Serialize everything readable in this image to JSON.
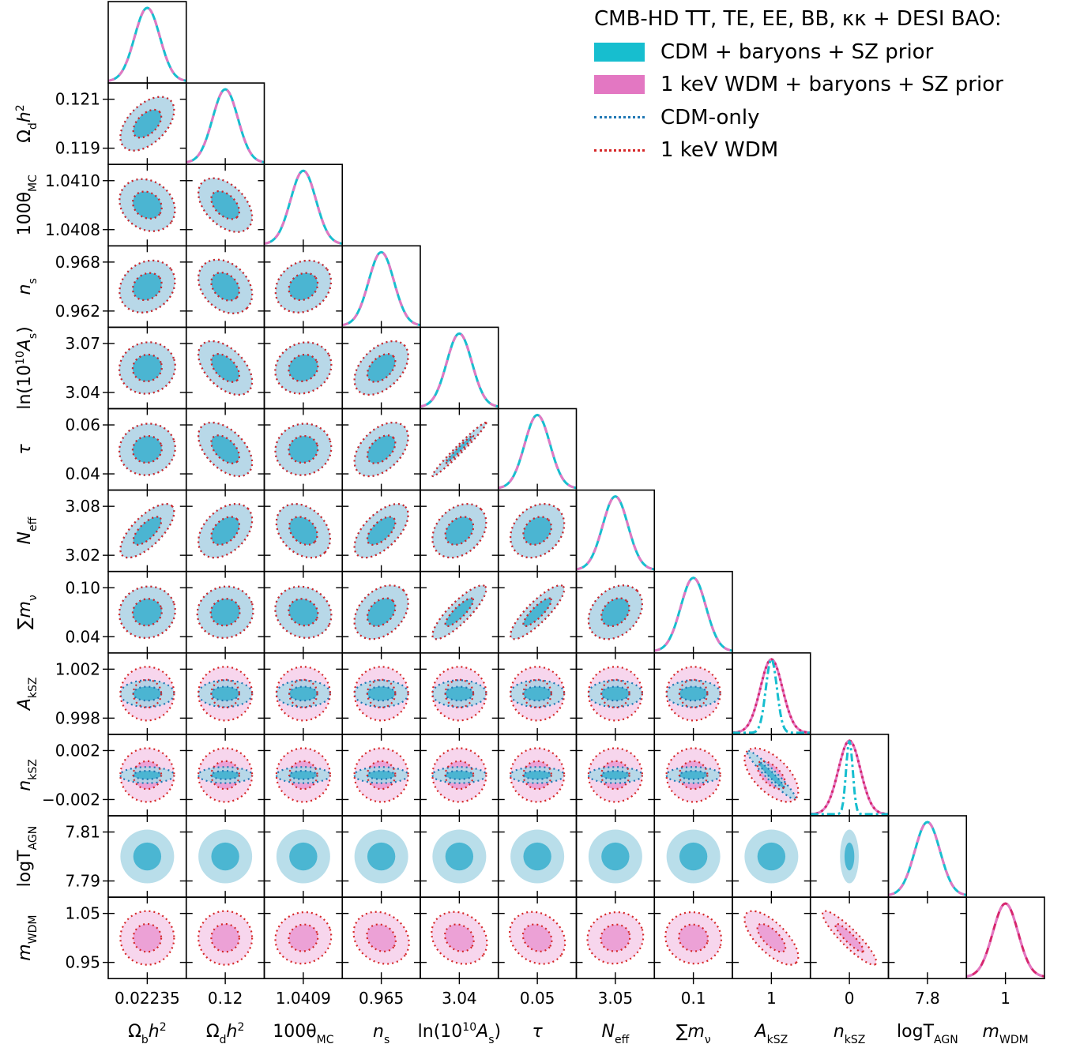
{
  "chart_data": {
    "type": "triangle",
    "title": "CMB-HD TT, TE, EE, BB, κκ + DESI BAO:",
    "legend_placement": "top-right",
    "legend": [
      {
        "label": "CDM + baryons + SZ prior",
        "style": "filled",
        "color": "#17becf"
      },
      {
        "label": "1 keV WDM + baryons + SZ prior",
        "style": "filled",
        "color": "#e377c2"
      },
      {
        "label": "CDM-only",
        "style": "dotted",
        "color": "#1f77b4"
      },
      {
        "label": "1 keV WDM",
        "style": "dotted",
        "color": "#d62728"
      }
    ],
    "parameters": [
      {
        "key": "omb",
        "label_base": "Ω",
        "label_sub": "b",
        "label_tail": "h",
        "label_sup": "2",
        "center_tick": "0.02235",
        "row_ticks": []
      },
      {
        "key": "omc",
        "label_base": "Ω",
        "label_sub": "d",
        "label_tail": "h",
        "label_sup": "2",
        "center_tick": "0.12",
        "row_ticks": [
          "0.121",
          "0.119"
        ]
      },
      {
        "key": "theta",
        "label_base": "100θ",
        "label_sub": "MC",
        "center_tick": "1.0409",
        "row_ticks": [
          "1.0410",
          "1.0408"
        ]
      },
      {
        "key": "ns",
        "label_base": "n",
        "label_sub": "s",
        "center_tick": "0.965",
        "row_ticks": [
          "0.968",
          "0.962"
        ]
      },
      {
        "key": "as",
        "label_base": "ln(10",
        "label_sup": "10",
        "label_mid": "A",
        "label_sub": "s",
        "label_close": ")",
        "center_tick": "3.04",
        "row_ticks": [
          "3.07",
          "3.04"
        ]
      },
      {
        "key": "tau",
        "label_base": "τ",
        "center_tick": "0.05",
        "row_ticks": [
          "0.06",
          "0.04"
        ]
      },
      {
        "key": "neff",
        "label_base": "N",
        "label_sub": "eff",
        "center_tick": "3.05",
        "row_ticks": [
          "3.08",
          "3.02"
        ]
      },
      {
        "key": "mnu",
        "label_base": "∑m",
        "label_sub": "ν",
        "center_tick": "0.1",
        "row_ticks": [
          "0.10",
          "0.04"
        ]
      },
      {
        "key": "aksz",
        "label_base": "A",
        "label_sub": "kSZ",
        "center_tick": "1",
        "row_ticks": [
          "1.002",
          "0.998"
        ]
      },
      {
        "key": "nksz",
        "label_base": "n",
        "label_sub": "kSZ",
        "center_tick": "0",
        "row_ticks": [
          "0.002",
          "−0.002"
        ]
      },
      {
        "key": "tagn",
        "label_base": "logT",
        "label_sub": "AGN",
        "center_tick": "7.8",
        "row_ticks": [
          "7.81",
          "7.79"
        ]
      },
      {
        "key": "mwdm",
        "label_base": "m",
        "label_sub": "WDM",
        "center_tick": "1",
        "row_ticks": [
          "1.05",
          "0.95"
        ]
      }
    ],
    "note_widths_cdm": [
      1,
      1,
      1,
      1,
      1,
      1,
      1,
      1,
      0.5,
      0.3,
      1,
      null
    ],
    "note_widths_wdm": [
      1,
      1,
      1,
      1,
      1,
      1,
      1,
      1,
      1,
      1,
      null,
      1
    ],
    "correlations": [
      [
        0,
        0,
        0,
        0,
        0,
        0,
        0,
        0,
        0,
        0,
        0,
        0
      ],
      [
        0.5,
        0,
        0,
        0,
        0,
        0,
        0,
        0,
        0,
        0,
        0,
        0
      ],
      [
        -0.2,
        -0.45,
        0,
        0,
        0,
        0,
        0,
        0,
        0,
        0,
        0,
        0
      ],
      [
        0.2,
        -0.3,
        0.2,
        0,
        0,
        0,
        0,
        0,
        0,
        0,
        0,
        0
      ],
      [
        0.1,
        -0.5,
        0.15,
        0.45,
        0,
        0,
        0,
        0,
        0,
        0,
        0,
        0
      ],
      [
        0.1,
        -0.5,
        0.1,
        0.45,
        0.98,
        0,
        0,
        0,
        0,
        0,
        0,
        0
      ],
      [
        0.7,
        0.4,
        -0.3,
        0.6,
        0.3,
        0.25,
        0,
        0,
        0,
        0,
        0,
        0
      ],
      [
        0.1,
        0.1,
        -0.15,
        0.35,
        0.85,
        0.85,
        0.3,
        0,
        0,
        0,
        0,
        0
      ],
      [
        0,
        0,
        0,
        0,
        0,
        0,
        0,
        0,
        0,
        0,
        0,
        0
      ],
      [
        0,
        0,
        0,
        0,
        0,
        0,
        0,
        0,
        -0.6,
        0,
        0,
        0
      ],
      [
        0,
        0,
        0,
        0,
        0,
        0,
        0,
        0,
        0,
        0,
        0,
        0
      ],
      [
        0,
        0,
        0.1,
        -0.2,
        -0.2,
        -0.2,
        0.1,
        -0.1,
        -0.7,
        -0.9,
        0,
        0
      ]
    ]
  }
}
